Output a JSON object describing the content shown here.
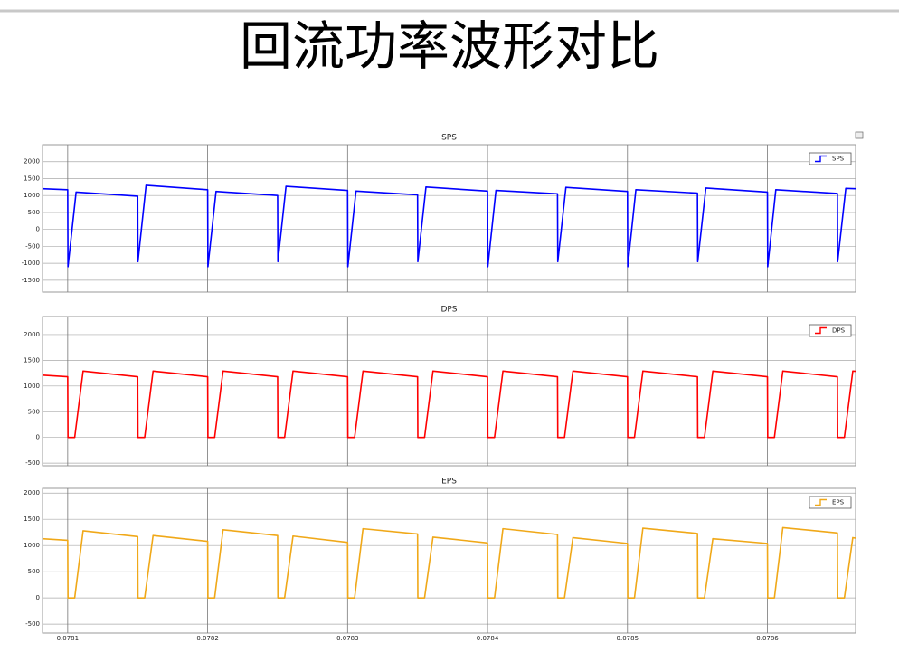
{
  "title": "回流功率波形对比",
  "chart_data": [
    {
      "type": "line",
      "title": "SPS",
      "x": [
        0.078082,
        0.0781,
        0.0781002,
        0.078106,
        0.07815,
        0.0781502,
        0.078156,
        0.0782,
        0.0782002,
        0.078206,
        0.07825,
        0.0782502,
        0.078256,
        0.0783,
        0.0783002,
        0.078306,
        0.07835,
        0.0783502,
        0.078356,
        0.0784,
        0.0784002,
        0.078406,
        0.07845,
        0.0784502,
        0.078456,
        0.0785,
        0.0785002,
        0.078506,
        0.07855,
        0.0785502,
        0.078556,
        0.0786,
        0.0786002,
        0.078606,
        0.07865,
        0.0786502,
        0.078656,
        0.078663
      ],
      "series": [
        {
          "name": "SPS",
          "color": "#0000ff",
          "values": [
            1200,
            1170,
            -1100,
            1100,
            980,
            -950,
            1300,
            1170,
            -1100,
            1120,
            1000,
            -950,
            1270,
            1150,
            -1100,
            1130,
            1020,
            -950,
            1250,
            1130,
            -1100,
            1150,
            1050,
            -950,
            1240,
            1120,
            -1100,
            1170,
            1070,
            -950,
            1220,
            1100,
            -1100,
            1170,
            1060,
            -950,
            1210,
            1200
          ]
        }
      ],
      "xlim": [
        0.078082,
        0.078663
      ],
      "ylim": [
        -1850,
        2500
      ],
      "yticks": [
        -1500,
        -1000,
        -500,
        0,
        500,
        1000,
        1500,
        2000
      ],
      "grid": true,
      "legend": "upper right"
    },
    {
      "type": "line",
      "title": "DPS",
      "x": [
        0.078082,
        0.0781,
        0.0781002,
        0.078105,
        0.078111,
        0.07815,
        0.0781502,
        0.078155,
        0.078161,
        0.0782,
        0.0782002,
        0.078205,
        0.078211,
        0.07825,
        0.0782502,
        0.078255,
        0.078261,
        0.0783,
        0.0783002,
        0.078305,
        0.078311,
        0.07835,
        0.0783502,
        0.078355,
        0.078361,
        0.0784,
        0.0784002,
        0.078405,
        0.078411,
        0.07845,
        0.0784502,
        0.078455,
        0.078461,
        0.0785,
        0.0785002,
        0.078505,
        0.078511,
        0.07855,
        0.0785502,
        0.078555,
        0.078561,
        0.0786,
        0.0786002,
        0.078605,
        0.078611,
        0.07865,
        0.0786502,
        0.078655,
        0.078661,
        0.078663
      ],
      "series": [
        {
          "name": "DPS",
          "color": "#ff0000",
          "values": [
            1210,
            1180,
            0,
            0,
            1290,
            1180,
            0,
            0,
            1290,
            1180,
            0,
            0,
            1290,
            1180,
            0,
            0,
            1290,
            1180,
            0,
            0,
            1290,
            1180,
            0,
            0,
            1290,
            1180,
            0,
            0,
            1290,
            1180,
            0,
            0,
            1290,
            1180,
            0,
            0,
            1290,
            1180,
            0,
            0,
            1290,
            1180,
            0,
            0,
            1290,
            1180,
            0,
            0,
            1290,
            1285
          ]
        }
      ],
      "xlim": [
        0.078082,
        0.078663
      ],
      "ylim": [
        -550,
        2350
      ],
      "yticks": [
        -500,
        0,
        500,
        1000,
        1500,
        2000
      ],
      "grid": true,
      "legend": "upper right"
    },
    {
      "type": "line",
      "title": "EPS",
      "x": [
        0.078082,
        0.0781,
        0.0781002,
        0.078105,
        0.078111,
        0.07815,
        0.0781502,
        0.078155,
        0.078161,
        0.0782,
        0.0782002,
        0.078205,
        0.078211,
        0.07825,
        0.0782502,
        0.078255,
        0.078261,
        0.0783,
        0.0783002,
        0.078305,
        0.078311,
        0.07835,
        0.0783502,
        0.078355,
        0.078361,
        0.0784,
        0.0784002,
        0.078405,
        0.078411,
        0.07845,
        0.0784502,
        0.078455,
        0.078461,
        0.0785,
        0.0785002,
        0.078505,
        0.078511,
        0.07855,
        0.0785502,
        0.078555,
        0.078561,
        0.0786,
        0.0786002,
        0.078605,
        0.078611,
        0.07865,
        0.0786502,
        0.078655,
        0.078661,
        0.078663
      ],
      "series": [
        {
          "name": "EPS",
          "color": "#f0a818",
          "values": [
            1130,
            1100,
            0,
            0,
            1280,
            1170,
            0,
            0,
            1190,
            1080,
            0,
            0,
            1300,
            1190,
            0,
            0,
            1180,
            1060,
            0,
            0,
            1320,
            1220,
            0,
            0,
            1160,
            1050,
            0,
            0,
            1320,
            1210,
            0,
            0,
            1150,
            1040,
            0,
            0,
            1330,
            1230,
            0,
            0,
            1130,
            1040,
            0,
            0,
            1340,
            1240,
            0,
            0,
            1150,
            1140
          ]
        }
      ],
      "xlim": [
        0.078082,
        0.078663
      ],
      "ylim": [
        -670,
        2090
      ],
      "xticks": [
        0.0781,
        0.0782,
        0.0783,
        0.0784,
        0.0785,
        0.0786
      ],
      "yticks": [
        -500,
        0,
        500,
        1000,
        1500,
        2000
      ],
      "grid": true,
      "legend": "upper right"
    }
  ]
}
